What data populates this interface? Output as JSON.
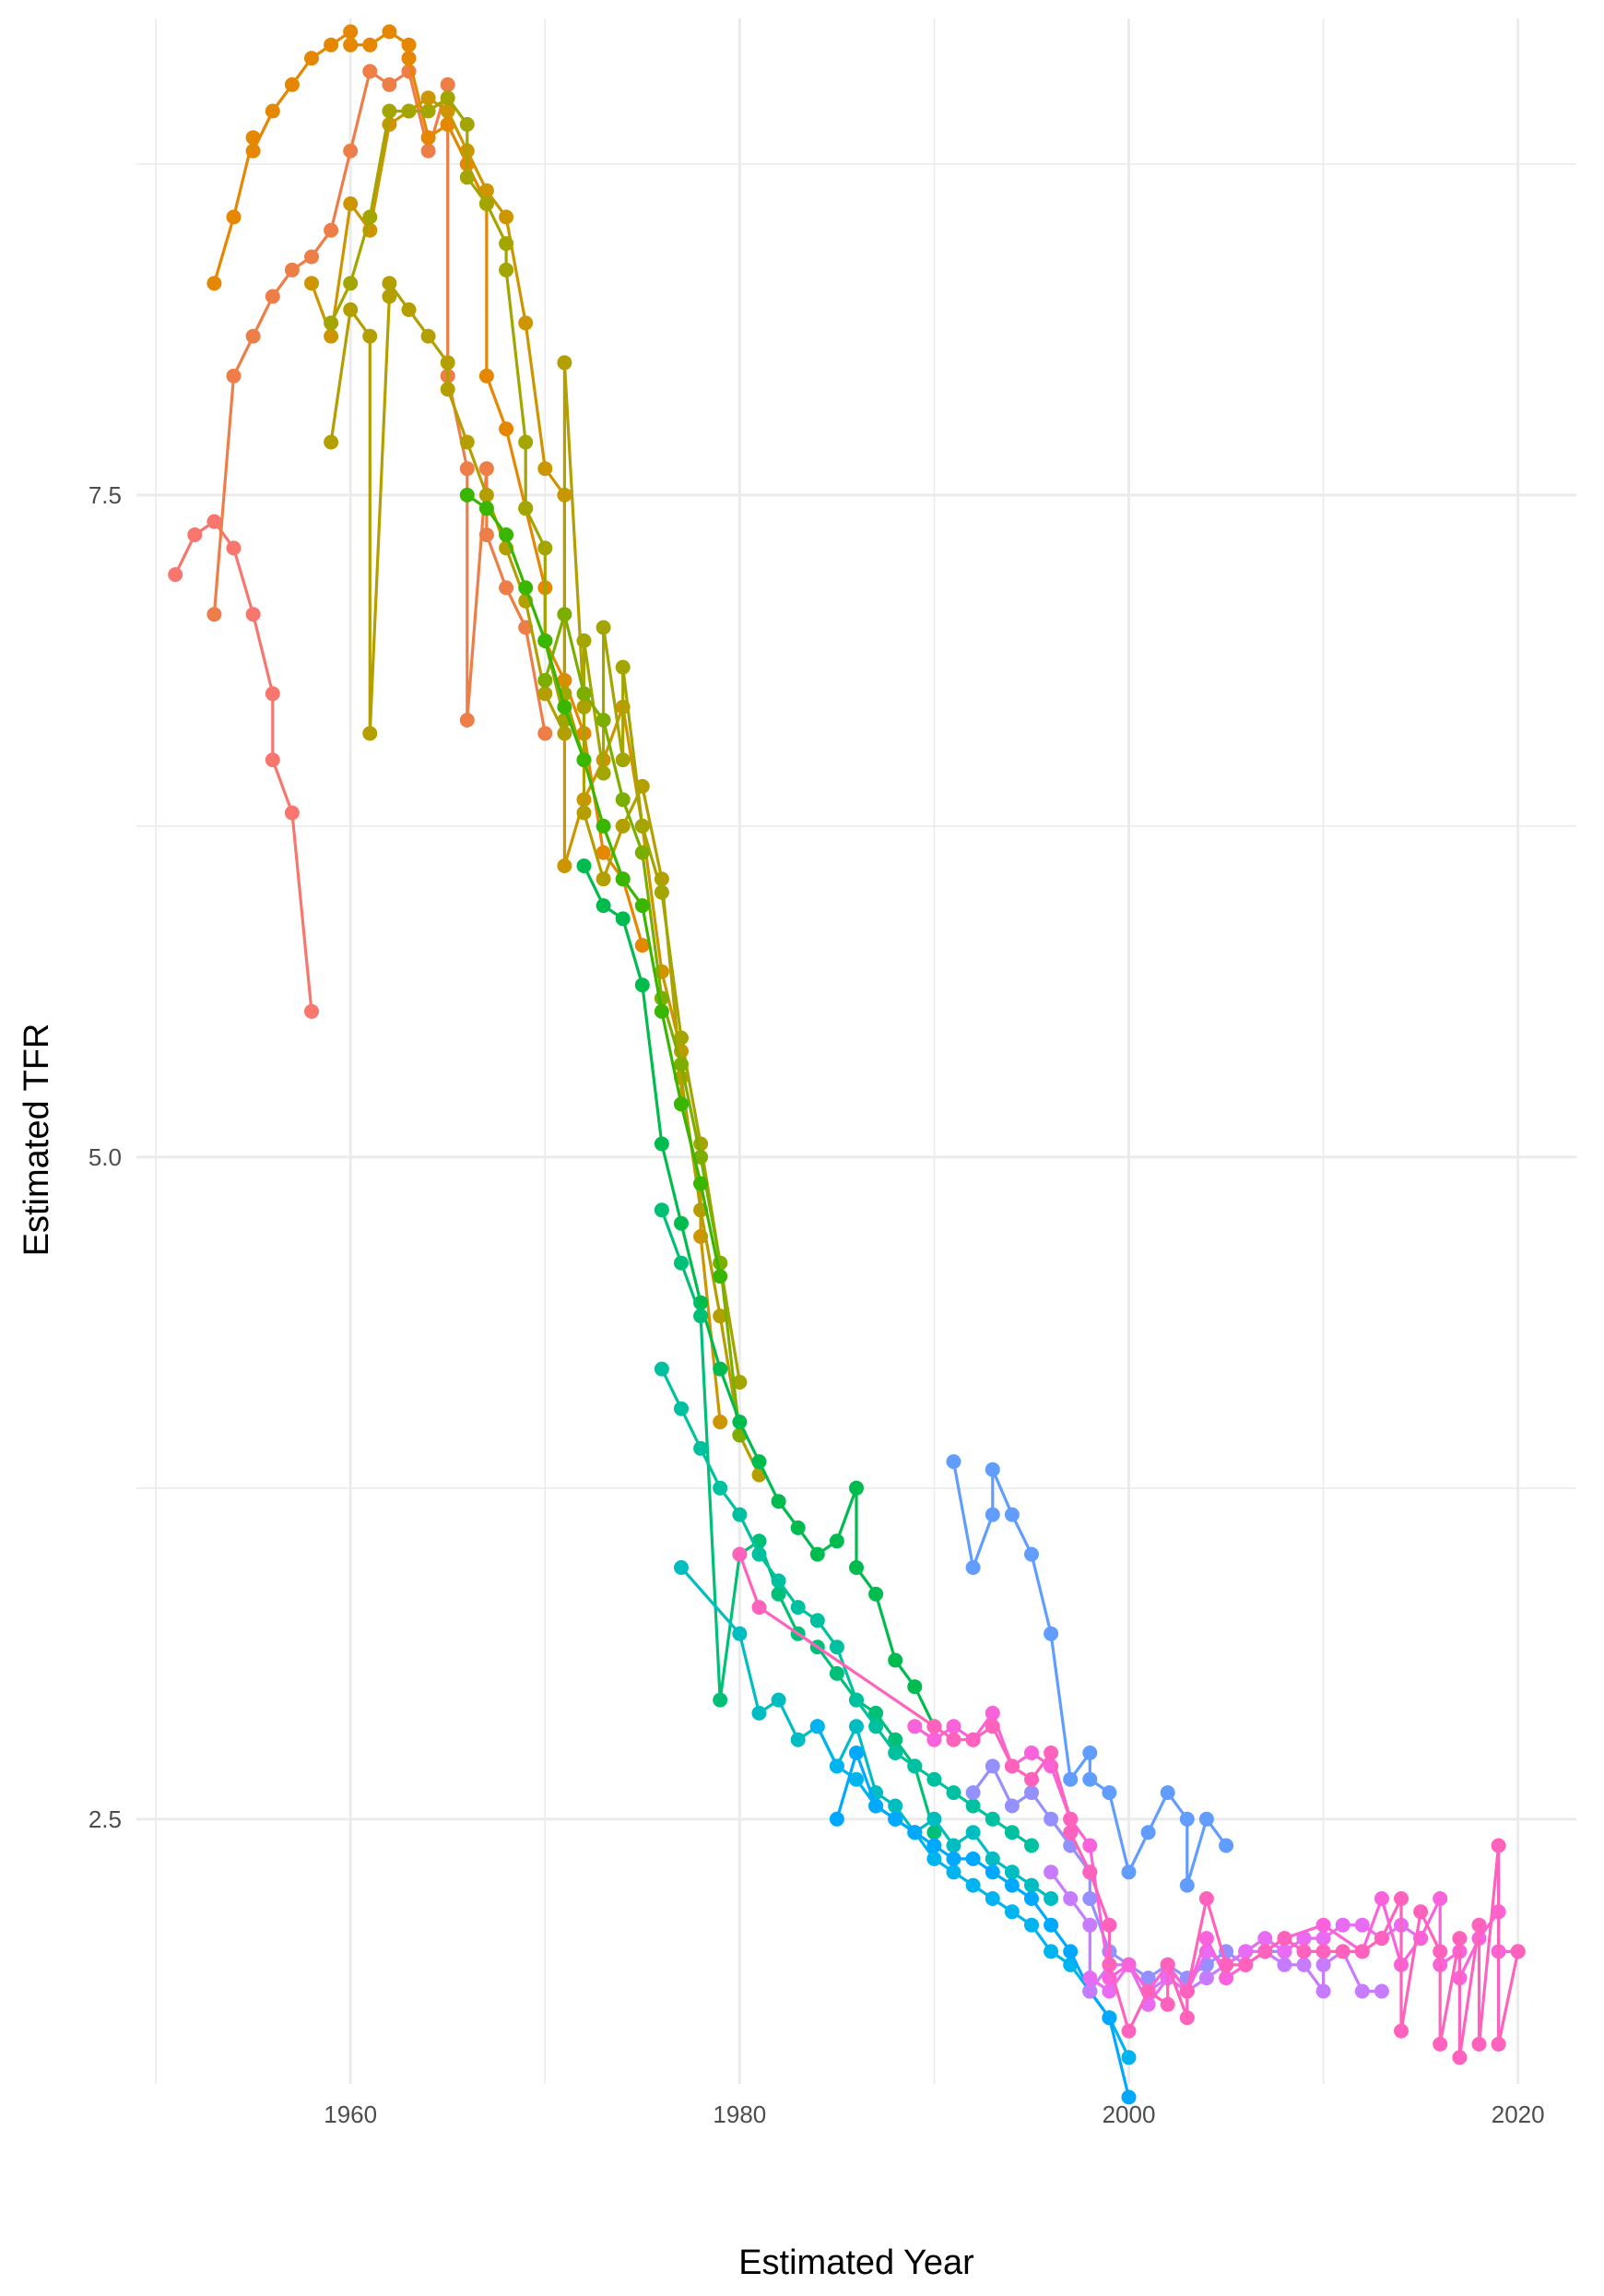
{
  "chart_data": {
    "type": "line",
    "title": "",
    "xlabel": "Estimated Year",
    "ylabel": "Estimated TFR",
    "xlim": [
      1949,
      2023
    ],
    "ylim": [
      1.5,
      9.3
    ],
    "x_ticks": [
      1960,
      1980,
      2000,
      2020
    ],
    "x_tick_labels": [
      "1960",
      "1980",
      "2000",
      "2020"
    ],
    "y_ticks": [
      2.5,
      5.0,
      7.5
    ],
    "y_tick_labels": [
      "2.5",
      "5.0",
      "7.5"
    ],
    "grid": true,
    "legend": "none",
    "markers": true,
    "series": [
      {
        "color": "#F8766D",
        "x": [
          1951,
          1952,
          1953,
          1954,
          1955,
          1956,
          1956,
          1957,
          1958
        ],
        "y": [
          7.2,
          7.35,
          7.4,
          7.3,
          7.05,
          6.75,
          6.5,
          6.3,
          5.55
        ]
      },
      {
        "color": "#EE7E48",
        "x": [
          1953,
          1954,
          1955,
          1956,
          1957,
          1958,
          1959,
          1960,
          1961,
          1962,
          1963,
          1964,
          1965,
          1965,
          1966,
          1966,
          1967,
          1967,
          1968,
          1969,
          1970
        ],
        "y": [
          7.05,
          7.95,
          8.1,
          8.25,
          8.35,
          8.4,
          8.5,
          8.8,
          9.1,
          9.05,
          9.1,
          8.8,
          9.05,
          7.95,
          7.6,
          6.65,
          7.6,
          7.35,
          7.15,
          7.0,
          6.6
        ]
      },
      {
        "color": "#E58700",
        "x": [
          1953,
          1954,
          1955,
          1955,
          1956,
          1957,
          1958,
          1959,
          1960,
          1960,
          1961,
          1962,
          1963,
          1963,
          1964,
          1965,
          1965,
          1966,
          1967,
          1967,
          1968,
          1969,
          1970,
          1970,
          1971,
          1972,
          1973,
          1974,
          1975
        ],
        "y": [
          8.3,
          8.55,
          8.85,
          8.8,
          8.95,
          9.05,
          9.15,
          9.2,
          9.25,
          9.2,
          9.2,
          9.25,
          9.2,
          9.15,
          8.85,
          8.9,
          8.9,
          8.75,
          8.6,
          7.95,
          7.75,
          7.45,
          7.15,
          6.95,
          6.8,
          6.6,
          6.15,
          6.05,
          5.8
        ]
      },
      {
        "color": "#CD9600",
        "x": [
          1958,
          1959,
          1960,
          1961,
          1962,
          1963,
          1964,
          1965,
          1966,
          1967,
          1968,
          1969,
          1970,
          1971,
          1971,
          1972,
          1973,
          1974,
          1975,
          1976,
          1977,
          1977,
          1978,
          1978,
          1979
        ],
        "y": [
          8.3,
          8.1,
          8.6,
          8.5,
          8.9,
          8.95,
          9.0,
          8.95,
          8.8,
          8.65,
          8.55,
          8.15,
          7.6,
          7.5,
          6.1,
          6.35,
          6.5,
          6.7,
          6.25,
          5.7,
          5.4,
          5.2,
          4.9,
          4.7,
          4.0
        ]
      },
      {
        "color": "#B49F00",
        "x": [
          1959,
          1960,
          1961,
          1961,
          1962,
          1962,
          1963,
          1964,
          1965,
          1965,
          1966,
          1967,
          1968,
          1969,
          1970,
          1971,
          1971,
          1972,
          1972,
          1973,
          1974,
          1975,
          1976,
          1977,
          1978,
          1979,
          1980,
          1981
        ],
        "y": [
          7.7,
          8.2,
          8.1,
          6.6,
          8.25,
          8.3,
          8.2,
          8.1,
          8.0,
          7.9,
          7.7,
          7.5,
          7.3,
          7.1,
          6.75,
          6.6,
          8.0,
          6.7,
          6.3,
          6.05,
          6.25,
          6.4,
          6.05,
          5.3,
          4.8,
          4.4,
          3.95,
          3.8
        ]
      },
      {
        "color": "#A3A500",
        "x": [
          1959,
          1960,
          1961,
          1962,
          1963,
          1964,
          1965,
          1966,
          1966,
          1967,
          1968,
          1968,
          1969,
          1969,
          1970,
          1970,
          1971,
          1971,
          1972,
          1972,
          1973,
          1973,
          1974,
          1974,
          1975,
          1976,
          1977,
          1978,
          1979,
          1980
        ],
        "y": [
          8.15,
          8.3,
          8.55,
          8.95,
          8.95,
          8.95,
          9.0,
          8.9,
          8.7,
          8.6,
          8.45,
          8.35,
          7.7,
          7.45,
          7.3,
          6.95,
          6.65,
          6.75,
          6.5,
          6.95,
          6.45,
          7.0,
          6.5,
          6.85,
          6.25,
          6.0,
          5.45,
          5.05,
          4.6,
          4.15
        ]
      },
      {
        "color": "#7CAE00",
        "x": [
          1970,
          1971,
          1972,
          1973,
          1974,
          1975,
          1976,
          1977,
          1978,
          1979,
          1980
        ],
        "y": [
          6.8,
          7.05,
          6.75,
          6.65,
          6.35,
          6.15,
          5.6,
          5.35,
          5.0,
          4.6,
          3.95
        ]
      },
      {
        "color": "#39B600",
        "x": [
          1966,
          1967,
          1968,
          1969,
          1970,
          1971,
          1972,
          1973,
          1974,
          1975,
          1976,
          1977,
          1978,
          1979
        ],
        "y": [
          7.5,
          7.45,
          7.35,
          7.15,
          6.95,
          6.7,
          6.5,
          6.25,
          6.05,
          5.95,
          5.55,
          5.2,
          4.9,
          4.55
        ]
      },
      {
        "color": "#00BB4E",
        "x": [
          1972,
          1973,
          1974,
          1975,
          1976,
          1977,
          1978,
          1979,
          1980,
          1981,
          1982,
          1983,
          1984,
          1985,
          1986,
          1986,
          1987,
          1988,
          1989,
          1990
        ],
        "y": [
          6.1,
          5.95,
          5.9,
          5.65,
          5.05,
          4.75,
          4.45,
          4.2,
          4.0,
          3.85,
          3.7,
          3.6,
          3.5,
          3.55,
          3.75,
          3.45,
          3.35,
          3.1,
          3.0,
          2.85
        ]
      },
      {
        "color": "#00BF76",
        "x": [
          1976,
          1977,
          1978,
          1979,
          1980,
          1981,
          1982,
          1983,
          1984,
          1985,
          1986,
          1987,
          1988,
          1989,
          1990
        ],
        "y": [
          4.8,
          4.6,
          4.4,
          2.95,
          3.5,
          3.55,
          3.35,
          3.2,
          3.15,
          3.05,
          2.95,
          2.9,
          2.8,
          2.7,
          2.45
        ]
      },
      {
        "color": "#00C19F",
        "x": [
          1976,
          1977,
          1978,
          1979,
          1980,
          1981,
          1982,
          1983,
          1984,
          1985,
          1986,
          1987,
          1988,
          1989,
          1990,
          1991,
          1992,
          1993,
          1994,
          1995
        ],
        "y": [
          4.2,
          4.05,
          3.9,
          3.75,
          3.65,
          3.5,
          3.4,
          3.3,
          3.25,
          3.15,
          2.95,
          2.85,
          2.75,
          2.7,
          2.65,
          2.6,
          2.55,
          2.5,
          2.45,
          2.4
        ]
      },
      {
        "color": "#00BDC2",
        "x": [
          1977,
          1980,
          1981,
          1982,
          1983,
          1984,
          1985,
          1986,
          1987,
          1988,
          1989,
          1990,
          1991,
          1992,
          1993,
          1994,
          1995,
          1996
        ],
        "y": [
          3.45,
          3.2,
          2.9,
          2.95,
          2.8,
          2.85,
          2.7,
          2.85,
          2.6,
          2.55,
          2.45,
          2.5,
          2.4,
          2.45,
          2.35,
          2.3,
          2.25,
          2.2
        ]
      },
      {
        "color": "#00B4EF",
        "x": [
          1984,
          1985,
          1986,
          1987,
          1988,
          1989,
          1990,
          1991,
          1992,
          1993,
          1994,
          1995,
          1996,
          1997,
          1998,
          1999,
          2000
        ],
        "y": [
          2.85,
          2.7,
          2.65,
          2.55,
          2.5,
          2.45,
          2.35,
          2.3,
          2.25,
          2.2,
          2.15,
          2.1,
          2.0,
          1.95,
          1.85,
          1.75,
          1.6
        ]
      },
      {
        "color": "#00A9FF",
        "x": [
          1985,
          1986,
          1987,
          1988,
          1989,
          1990,
          1991,
          1992,
          1993,
          1994,
          1995,
          1996,
          1997,
          1998,
          1999,
          2000
        ],
        "y": [
          2.5,
          2.75,
          2.55,
          2.5,
          2.45,
          2.4,
          2.35,
          2.35,
          2.3,
          2.25,
          2.2,
          2.1,
          2.0,
          1.85,
          1.75,
          1.45
        ]
      },
      {
        "color": "#619CFF",
        "x": [
          1991,
          1992,
          1993,
          1993,
          1994,
          1995,
          1996,
          1997,
          1998,
          1998,
          1999,
          2000,
          2001,
          2002,
          2003,
          2003,
          2004,
          2005
        ],
        "y": [
          3.85,
          3.45,
          3.65,
          3.82,
          3.65,
          3.5,
          3.2,
          2.65,
          2.75,
          2.65,
          2.6,
          2.3,
          2.45,
          2.6,
          2.5,
          2.25,
          2.5,
          2.4
        ]
      },
      {
        "color": "#9590FF",
        "x": [
          1992,
          1993,
          1994,
          1995,
          1996,
          1997,
          1998,
          1998,
          1999,
          2000,
          2001,
          2002,
          2003,
          2004,
          2005,
          2006,
          2007,
          2008,
          2009
        ],
        "y": [
          2.6,
          2.7,
          2.55,
          2.6,
          2.5,
          2.4,
          2.3,
          2.2,
          2.0,
          1.95,
          1.9,
          1.95,
          1.9,
          1.95,
          2.0,
          1.95,
          2.0,
          2.0,
          2.05
        ]
      },
      {
        "color": "#C77CFF",
        "x": [
          1996,
          1997,
          1998,
          1998,
          1999,
          2000,
          2001,
          2002,
          2003,
          2004,
          2005,
          2006,
          2007,
          2008,
          2009,
          2010,
          2010,
          2011,
          2012,
          2013
        ],
        "y": [
          2.3,
          2.2,
          2.1,
          1.85,
          1.95,
          1.95,
          1.85,
          1.9,
          1.85,
          1.9,
          1.95,
          2.0,
          2.0,
          1.95,
          1.95,
          1.85,
          1.95,
          2.0,
          1.85,
          1.85
        ]
      },
      {
        "color": "#E76BF3",
        "x": [
          1998,
          1999,
          2000,
          2001,
          2002,
          2003,
          2004,
          2005,
          2006,
          2007,
          2008,
          2009,
          2010,
          2011,
          2012,
          2013,
          2014,
          2015
        ],
        "y": [
          1.9,
          1.85,
          1.95,
          1.8,
          1.9,
          1.85,
          2.0,
          1.95,
          2.0,
          2.05,
          2.0,
          2.05,
          2.05,
          2.1,
          2.1,
          2.05,
          2.1,
          2.05
        ]
      },
      {
        "color": "#FA62DB",
        "x": [
          1989,
          1990,
          1991,
          1992,
          1993,
          1994,
          1995,
          1996,
          1997,
          1998,
          1999,
          2000,
          2001,
          2002,
          2003,
          2004,
          2005,
          2006,
          2007,
          2008,
          2010,
          2012,
          2013,
          2014,
          2015,
          2016,
          2016,
          2017,
          2017,
          2018,
          2019,
          2019,
          2020
        ],
        "y": [
          2.85,
          2.8,
          2.85,
          2.8,
          2.9,
          2.7,
          2.75,
          2.7,
          2.5,
          2.4,
          1.9,
          1.95,
          1.85,
          1.95,
          1.85,
          2.05,
          1.9,
          1.95,
          2.0,
          2.05,
          2.1,
          2.0,
          2.2,
          1.95,
          2.05,
          2.2,
          1.95,
          2.0,
          1.9,
          2.05,
          2.15,
          2.0,
          2.0
        ]
      },
      {
        "color": "#FF62BC",
        "x": [
          1980,
          1981,
          1990,
          1991,
          1992,
          1993,
          1994,
          1995,
          1996,
          1997,
          1997,
          1998,
          1999,
          1999,
          2000,
          2001,
          2002,
          2002,
          2003,
          2003,
          2004,
          2005,
          2006,
          2007,
          2008,
          2009,
          2010,
          2011,
          2012,
          2013,
          2014,
          2014,
          2015,
          2016,
          2016,
          2017,
          2017,
          2018,
          2018,
          2019,
          2019,
          2020
        ],
        "y": [
          3.5,
          3.3,
          2.85,
          2.8,
          2.8,
          2.85,
          2.7,
          2.65,
          2.75,
          2.5,
          2.45,
          2.3,
          2.1,
          1.95,
          1.7,
          1.85,
          1.8,
          1.95,
          1.75,
          1.85,
          2.2,
          1.95,
          1.95,
          2.0,
          2.05,
          2.0,
          2.0,
          2.0,
          2.0,
          2.05,
          2.2,
          1.7,
          2.15,
          2.0,
          1.65,
          2.05,
          1.6,
          2.1,
          1.65,
          2.4,
          1.65,
          2.0
        ]
      }
    ]
  }
}
